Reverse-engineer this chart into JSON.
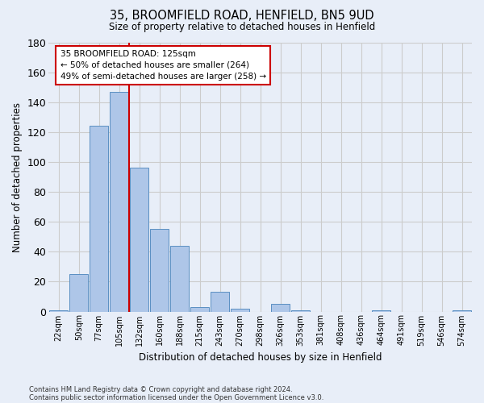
{
  "title_line1": "35, BROOMFIELD ROAD, HENFIELD, BN5 9UD",
  "title_line2": "Size of property relative to detached houses in Henfield",
  "xlabel": "Distribution of detached houses by size in Henfield",
  "ylabel": "Number of detached properties",
  "footnote1": "Contains HM Land Registry data © Crown copyright and database right 2024.",
  "footnote2": "Contains public sector information licensed under the Open Government Licence v3.0.",
  "bin_labels": [
    "22sqm",
    "50sqm",
    "77sqm",
    "105sqm",
    "132sqm",
    "160sqm",
    "188sqm",
    "215sqm",
    "243sqm",
    "270sqm",
    "298sqm",
    "326sqm",
    "353sqm",
    "381sqm",
    "408sqm",
    "436sqm",
    "464sqm",
    "491sqm",
    "519sqm",
    "546sqm",
    "574sqm"
  ],
  "bar_values": [
    1,
    25,
    124,
    147,
    96,
    55,
    44,
    3,
    13,
    2,
    0,
    5,
    1,
    0,
    0,
    0,
    1,
    0,
    0,
    0,
    1
  ],
  "bar_color": "#aec6e8",
  "bar_edge_color": "#5a8fc2",
  "grid_color": "#cccccc",
  "vline_x": 3.5,
  "vline_color": "#cc0000",
  "annotation_line1": "35 BROOMFIELD ROAD: 125sqm",
  "annotation_line2": "← 50% of detached houses are smaller (264)",
  "annotation_line3": "49% of semi-detached houses are larger (258) →",
  "annotation_box_color": "#cc0000",
  "annotation_box_bg": "#ffffff",
  "ylim": [
    0,
    180
  ],
  "yticks": [
    0,
    20,
    40,
    60,
    80,
    100,
    120,
    140,
    160,
    180
  ],
  "bg_color": "#e8eef8"
}
